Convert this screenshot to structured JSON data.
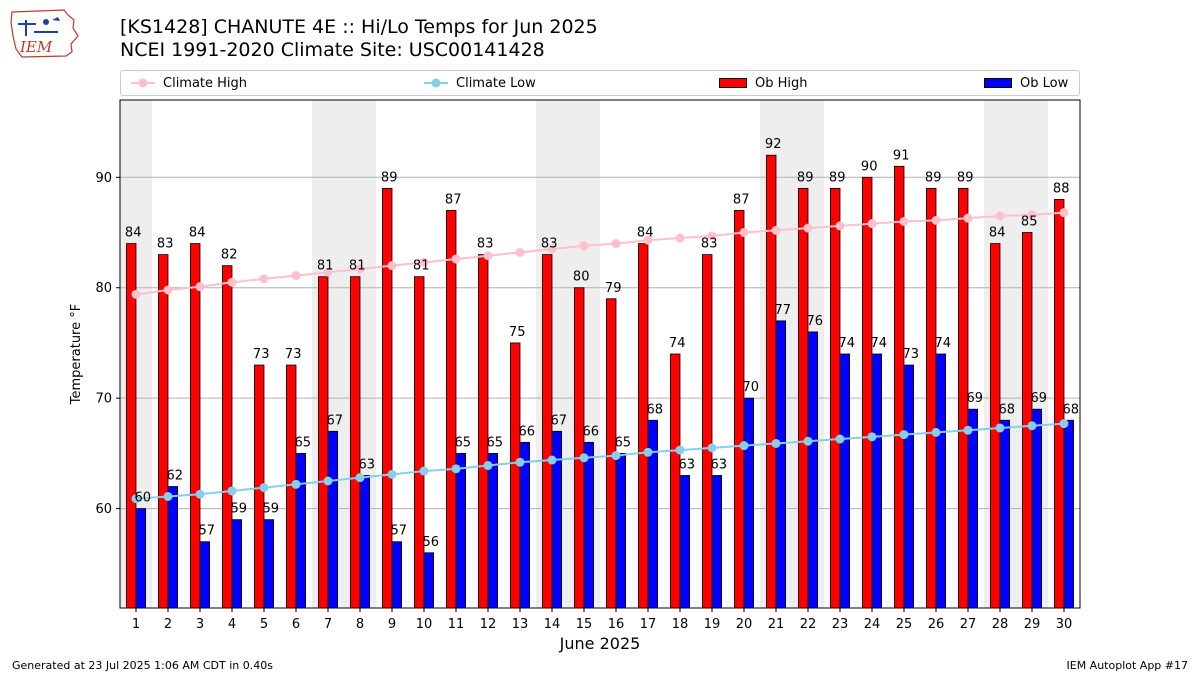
{
  "header": {
    "logo_text": "IEM",
    "title_line1": "[KS1428] CHANUTE 4E :: Hi/Lo Temps for Jun 2025",
    "title_line2": "NCEI 1991-2020 Climate Site: USC00141428"
  },
  "legend": {
    "climate_high": "Climate High",
    "climate_low": "Climate Low",
    "ob_high": "Ob High",
    "ob_low": "Ob Low"
  },
  "footer": {
    "generated": "Generated at 23 Jul 2025 1:06 AM CDT in 0.40s",
    "app": "IEM Autoplot App #17"
  },
  "colors": {
    "ob_high": "#ff0000",
    "ob_low": "#0000ff",
    "climate_high": "#ffc0cb",
    "climate_low": "#87ceeb",
    "weekend_shade": "#eeeeee",
    "grid": "#b0b0b0"
  },
  "chart_data": {
    "type": "bar",
    "xlabel": "June 2025",
    "ylabel": "Temperature °F",
    "ylim": [
      51,
      97
    ],
    "yticks": [
      60,
      70,
      80,
      90
    ],
    "grid": true,
    "legend_position": "top",
    "shaded_days": [
      1,
      7,
      8,
      14,
      15,
      21,
      22,
      28,
      29
    ],
    "categories": [
      "1",
      "2",
      "3",
      "4",
      "5",
      "6",
      "7",
      "8",
      "9",
      "10",
      "11",
      "12",
      "13",
      "14",
      "15",
      "16",
      "17",
      "18",
      "19",
      "20",
      "21",
      "22",
      "23",
      "24",
      "25",
      "26",
      "27",
      "28",
      "29",
      "30"
    ],
    "series": [
      {
        "name": "Ob High",
        "type": "bar",
        "values": [
          84,
          83,
          84,
          82,
          73,
          73,
          81,
          81,
          89,
          81,
          87,
          83,
          75,
          83,
          80,
          79,
          84,
          74,
          83,
          87,
          92,
          89,
          89,
          90,
          91,
          89,
          89,
          84,
          85,
          88
        ]
      },
      {
        "name": "Ob Low",
        "type": "bar",
        "values": [
          60,
          62,
          57,
          59,
          59,
          65,
          67,
          63,
          57,
          56,
          65,
          65,
          66,
          67,
          66,
          65,
          68,
          63,
          63,
          70,
          77,
          76,
          74,
          74,
          73,
          74,
          69,
          68,
          69,
          68
        ]
      },
      {
        "name": "Climate High",
        "type": "line",
        "values": [
          79.4,
          79.8,
          80.1,
          80.5,
          80.8,
          81.1,
          81.4,
          81.7,
          82.0,
          82.3,
          82.6,
          82.9,
          83.2,
          83.5,
          83.8,
          84.0,
          84.3,
          84.5,
          84.7,
          85.0,
          85.2,
          85.4,
          85.6,
          85.8,
          86.0,
          86.1,
          86.3,
          86.5,
          86.6,
          86.8
        ]
      },
      {
        "name": "Climate Low",
        "type": "line",
        "values": [
          60.9,
          61.1,
          61.3,
          61.6,
          61.9,
          62.2,
          62.5,
          62.8,
          63.1,
          63.4,
          63.6,
          63.9,
          64.2,
          64.4,
          64.6,
          64.8,
          65.1,
          65.3,
          65.5,
          65.7,
          65.9,
          66.1,
          66.3,
          66.5,
          66.7,
          66.9,
          67.1,
          67.3,
          67.5,
          67.7
        ]
      }
    ]
  }
}
